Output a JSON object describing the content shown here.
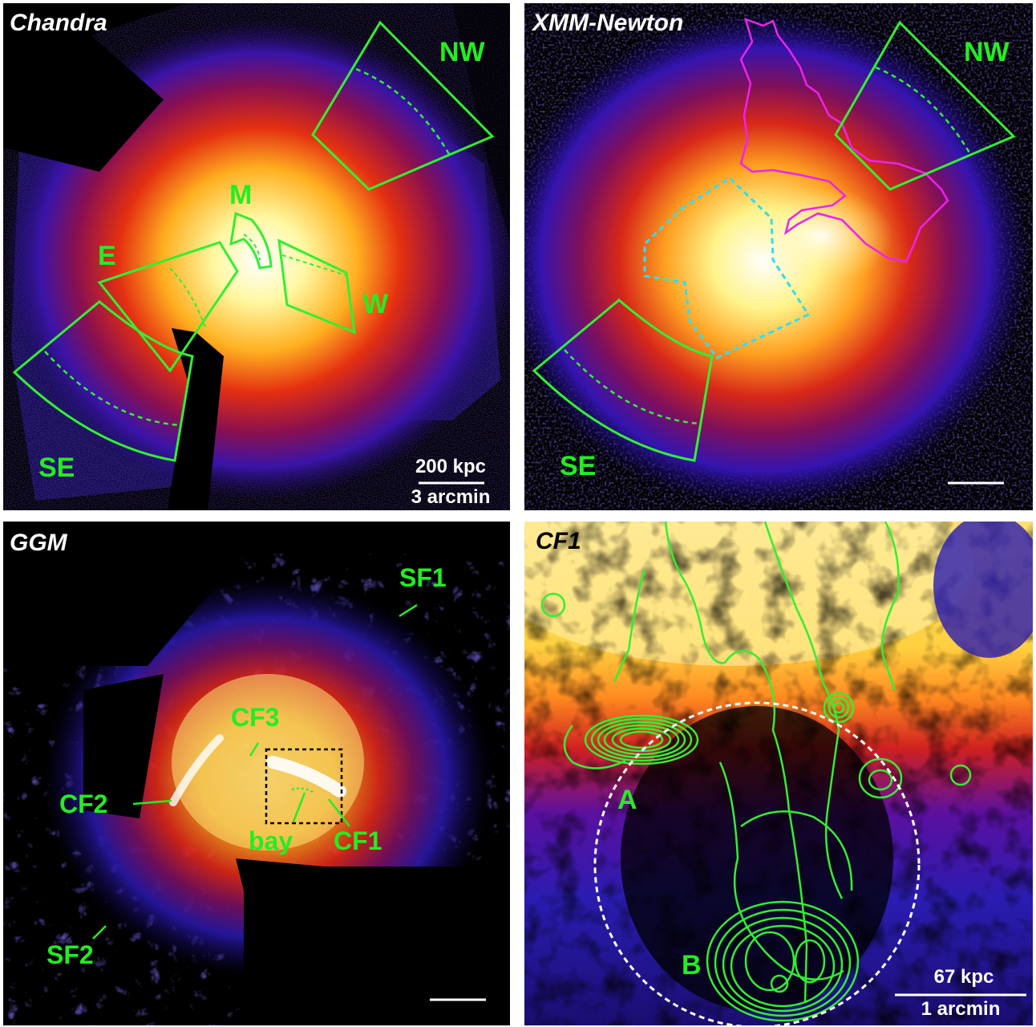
{
  "colors": {
    "region_green": "#33ee33",
    "label_green": "#22ee22",
    "magenta": "#ee22ee",
    "cyan": "#33ddee",
    "white": "#ffffff",
    "panel_bg": "#000000"
  },
  "panels": {
    "chandra": {
      "title": "Chandra",
      "labels": {
        "nw": "NW",
        "m": "M",
        "e": "E",
        "w": "W",
        "se": "SE"
      },
      "scale_top": "200 kpc",
      "scale_bottom": "3 arcmin"
    },
    "xmm": {
      "title": "XMM-Newton",
      "labels": {
        "nw": "NW",
        "se": "SE"
      }
    },
    "ggm": {
      "title": "GGM",
      "labels": {
        "sf1": "SF1",
        "cf3": "CF3",
        "cf2": "CF2",
        "bay": "bay",
        "cf1": "CF1",
        "sf2": "SF2"
      }
    },
    "cf1": {
      "title": "CF1",
      "labels": {
        "a": "A",
        "b": "B"
      },
      "scale_top": "67 kpc",
      "scale_bottom": "1 arcmin"
    }
  }
}
